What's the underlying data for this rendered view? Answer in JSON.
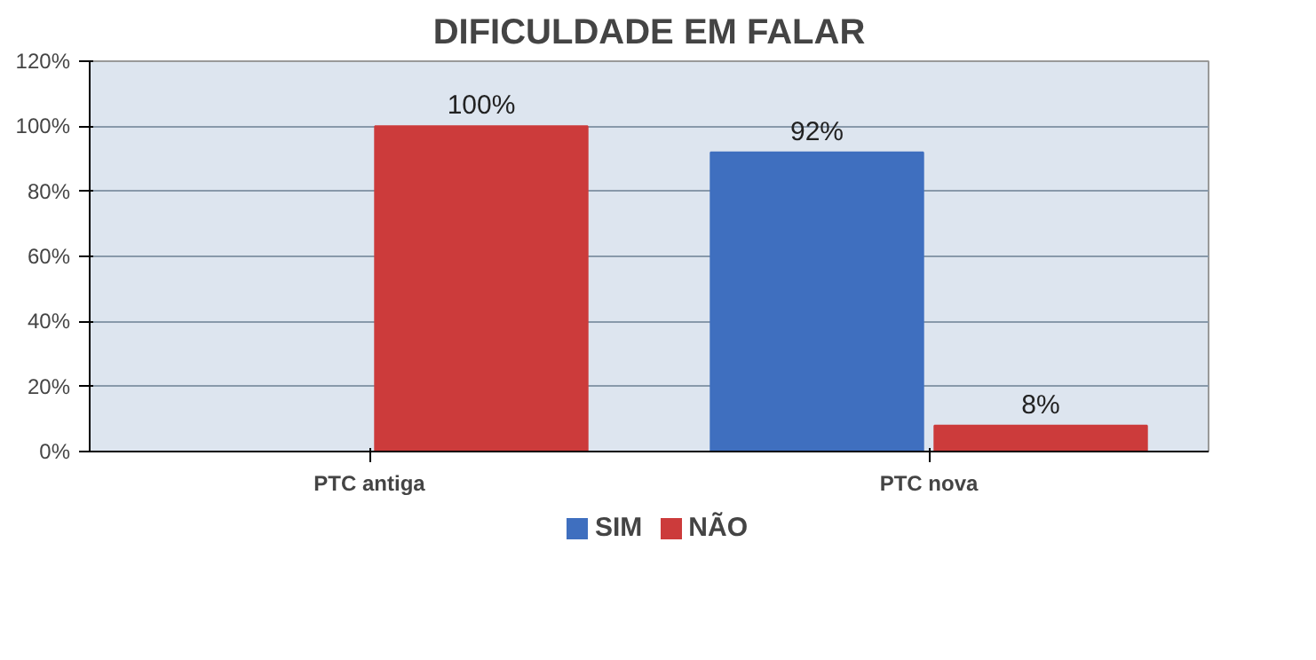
{
  "chart_data": {
    "type": "bar",
    "title": "DIFICULDADE EM FALAR",
    "categories": [
      "PTC antiga",
      "PTC nova"
    ],
    "series": [
      {
        "name": "SIM",
        "color": "#3f6fbf",
        "values": [
          null,
          92
        ],
        "value_labels": [
          null,
          "92%"
        ]
      },
      {
        "name": "NÃO",
        "color": "#cc3b3b",
        "values": [
          100,
          8
        ],
        "value_labels": [
          "100%",
          "8%"
        ]
      }
    ],
    "ylim": [
      0,
      120
    ],
    "yticks": [
      {
        "value": 0,
        "label": "0%"
      },
      {
        "value": 20,
        "label": "20%"
      },
      {
        "value": 40,
        "label": "40%"
      },
      {
        "value": 60,
        "label": "60%"
      },
      {
        "value": 80,
        "label": "80%"
      },
      {
        "value": 100,
        "label": "100%"
      },
      {
        "value": 120,
        "label": "120%"
      }
    ],
    "grid": "y",
    "legend": "bottom"
  }
}
